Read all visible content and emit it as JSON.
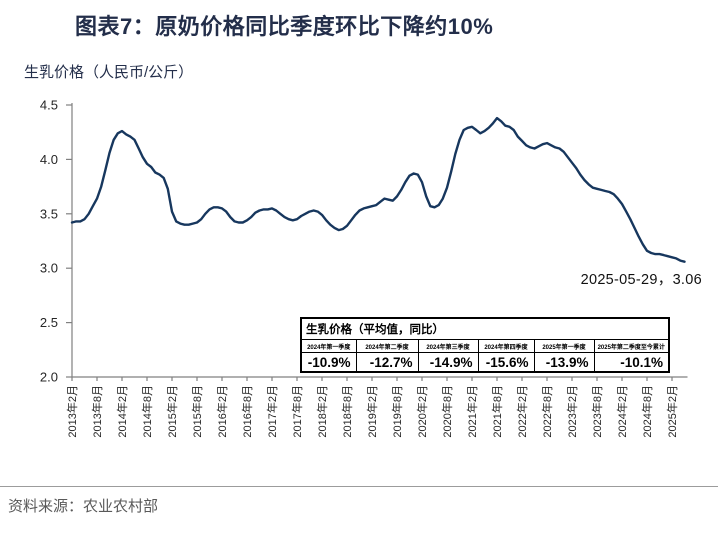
{
  "header": {
    "title": "图表7：原奶价格同比季度环比下降约10%"
  },
  "chart_subtitle": "生乳价格（人民币/公斤）",
  "annotation_label": "2025-05-29，3.06",
  "table": {
    "title": "生乳价格（平均值，同比）",
    "columns": [
      "2024年第一季度",
      "2024年第二季度",
      "2024年第三季度",
      "2024年第四季度",
      "2025年第一季度",
      "2025年第二季度至今累计"
    ],
    "values": [
      "-10.9%",
      "-12.7%",
      "-14.9%",
      "-15.6%",
      "-13.9%",
      "-10.1%"
    ]
  },
  "footer": {
    "source": "资料来源：农业农村部"
  },
  "chart_data": {
    "type": "line",
    "title": "生乳价格（人民币/公斤）",
    "xlabel": "",
    "ylabel": "生乳价格（人民币/公斤）",
    "ylim": [
      2.0,
      4.5
    ],
    "y_ticks": [
      2.0,
      2.5,
      3.0,
      3.5,
      4.0,
      4.5
    ],
    "x_tick_labels": [
      "2013年2月",
      "2013年8月",
      "2014年2月",
      "2014年8月",
      "2015年2月",
      "2015年8月",
      "2016年2月",
      "2016年8月",
      "2017年2月",
      "2017年8月",
      "2018年2月",
      "2018年8月",
      "2019年2月",
      "2019年8月",
      "2020年2月",
      "2020年8月",
      "2021年2月",
      "2021年8月",
      "2022年2月",
      "2022年8月",
      "2023年2月",
      "2023年8月",
      "2024年2月",
      "2024年8月",
      "2025年2月"
    ],
    "x_start": "2013年2月",
    "x_end": "2025年5月",
    "x_frequency": "monthly",
    "grid": false,
    "legend": false,
    "line_color": "#17375e",
    "axis_color": "#808080",
    "annotation": {
      "date": "2025-05-29",
      "value": 3.06
    },
    "series": [
      {
        "name": "生乳价格",
        "values": [
          3.42,
          3.43,
          3.43,
          3.45,
          3.5,
          3.57,
          3.64,
          3.75,
          3.9,
          4.06,
          4.18,
          4.24,
          4.26,
          4.23,
          4.21,
          4.18,
          4.1,
          4.02,
          3.96,
          3.93,
          3.88,
          3.86,
          3.83,
          3.73,
          3.52,
          3.43,
          3.41,
          3.4,
          3.4,
          3.41,
          3.42,
          3.45,
          3.5,
          3.54,
          3.56,
          3.56,
          3.55,
          3.52,
          3.47,
          3.43,
          3.42,
          3.42,
          3.44,
          3.47,
          3.51,
          3.53,
          3.54,
          3.54,
          3.55,
          3.53,
          3.5,
          3.47,
          3.45,
          3.44,
          3.45,
          3.48,
          3.5,
          3.52,
          3.53,
          3.52,
          3.49,
          3.44,
          3.4,
          3.37,
          3.35,
          3.36,
          3.39,
          3.44,
          3.49,
          3.53,
          3.55,
          3.56,
          3.57,
          3.58,
          3.61,
          3.64,
          3.63,
          3.62,
          3.66,
          3.72,
          3.79,
          3.85,
          3.87,
          3.86,
          3.79,
          3.66,
          3.57,
          3.56,
          3.58,
          3.64,
          3.74,
          3.89,
          4.05,
          4.18,
          4.27,
          4.29,
          4.3,
          4.27,
          4.24,
          4.26,
          4.29,
          4.33,
          4.38,
          4.35,
          4.31,
          4.3,
          4.27,
          4.21,
          4.17,
          4.13,
          4.11,
          4.1,
          4.12,
          4.14,
          4.15,
          4.13,
          4.11,
          4.1,
          4.07,
          4.02,
          3.97,
          3.92,
          3.86,
          3.81,
          3.77,
          3.74,
          3.73,
          3.72,
          3.71,
          3.7,
          3.68,
          3.64,
          3.59,
          3.52,
          3.45,
          3.37,
          3.29,
          3.22,
          3.16,
          3.14,
          3.13,
          3.13,
          3.12,
          3.11,
          3.1,
          3.09,
          3.07,
          3.06
        ]
      }
    ]
  }
}
